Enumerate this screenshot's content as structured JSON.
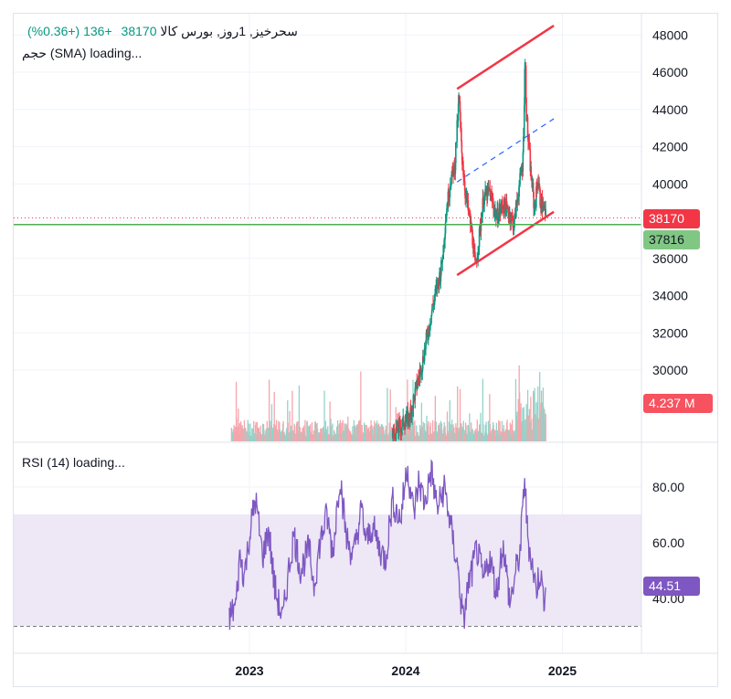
{
  "header": {
    "symbol": "سحرخیز, 1روز, بورس کالا",
    "last": "38170",
    "change": "+136 (+0.36%)",
    "volume_label": "حجم (SMA) loading..."
  },
  "rsi_header": {
    "label": "RSI (14) loading..."
  },
  "badges": {
    "price": "38170",
    "level": "37816",
    "volume": "4.237 M",
    "rsi": "44.51"
  },
  "colors": {
    "up": "#089981",
    "down": "#f23645",
    "channel": "#f23645",
    "midline": "#2962ff",
    "level": "#4caf50",
    "rsi": "#7e57c2",
    "rsi_band": "#ede7f6"
  },
  "chart_data": [
    {
      "type": "candlestick",
      "x_axis": {
        "tick_labels": [
          "2023",
          "2024",
          "2025"
        ]
      },
      "y_axis": {
        "tick_labels": [
          "30000",
          "32000",
          "34000",
          "36000",
          "38000",
          "40000",
          "42000",
          "44000",
          "46000",
          "48000"
        ],
        "range": [
          26000,
          49000
        ],
        "position": "right"
      },
      "price_path": [
        [
          "2023-12-01",
          26500
        ],
        [
          "2024-01-10",
          27500
        ],
        [
          "2024-02-10",
          30500
        ],
        [
          "2024-03-05",
          33500
        ],
        [
          "2024-03-25",
          35500
        ],
        [
          "2024-04-05",
          38500
        ],
        [
          "2024-04-15",
          40200
        ],
        [
          "2024-04-25",
          41000
        ],
        [
          "2024-05-05",
          44800
        ],
        [
          "2024-05-10",
          42000
        ],
        [
          "2024-05-20",
          39500
        ],
        [
          "2024-05-27",
          38500
        ],
        [
          "2024-06-05",
          37200
        ],
        [
          "2024-06-12",
          35400
        ],
        [
          "2024-06-20",
          37000
        ],
        [
          "2024-07-01",
          39200
        ],
        [
          "2024-07-15",
          39600
        ],
        [
          "2024-08-01",
          38200
        ],
        [
          "2024-08-15",
          38900
        ],
        [
          "2024-09-01",
          38400
        ],
        [
          "2024-09-10",
          37800
        ],
        [
          "2024-09-20",
          39500
        ],
        [
          "2024-10-01",
          41200
        ],
        [
          "2024-10-06",
          46800
        ],
        [
          "2024-10-10",
          43500
        ],
        [
          "2024-10-18",
          41000
        ],
        [
          "2024-10-28",
          38600
        ],
        [
          "2024-11-05",
          40300
        ],
        [
          "2024-11-12",
          38900
        ],
        [
          "2024-11-20",
          38600
        ],
        [
          "2024-11-24",
          38170
        ]
      ],
      "last_price": 38170,
      "horizontal_level": 37816,
      "channel": {
        "upper": [
          [
            "2024-04-30",
            45100
          ],
          [
            "2024-12-12",
            48500
          ]
        ],
        "lower": [
          [
            "2024-04-30",
            35100
          ],
          [
            "2024-12-12",
            38500
          ]
        ],
        "middle": [
          [
            "2024-04-30",
            40100
          ],
          [
            "2024-12-12",
            43500
          ]
        ]
      },
      "volume_last": "4.237 M"
    },
    {
      "type": "line",
      "name": "RSI (14)",
      "y_axis": {
        "tick_labels": [
          "40.00",
          "60.00",
          "80.00"
        ],
        "range": [
          21,
          93
        ],
        "position": "right"
      },
      "bands": [
        30,
        50,
        70
      ],
      "series": [
        [
          "2022-11-15",
          33
        ],
        [
          "2022-12-01",
          38
        ],
        [
          "2022-12-10",
          56
        ],
        [
          "2022-12-20",
          48
        ],
        [
          "2023-01-01",
          62
        ],
        [
          "2023-01-15",
          76
        ],
        [
          "2023-02-01",
          55
        ],
        [
          "2023-02-15",
          65
        ],
        [
          "2023-03-01",
          44
        ],
        [
          "2023-03-20",
          32
        ],
        [
          "2023-04-01",
          48
        ],
        [
          "2023-04-15",
          63
        ],
        [
          "2023-05-01",
          50
        ],
        [
          "2023-05-20",
          58
        ],
        [
          "2023-06-01",
          45
        ],
        [
          "2023-06-15",
          60
        ],
        [
          "2023-07-01",
          70
        ],
        [
          "2023-07-15",
          56
        ],
        [
          "2023-08-01",
          85
        ],
        [
          "2023-08-15",
          62
        ],
        [
          "2023-09-01",
          55
        ],
        [
          "2023-09-20",
          72
        ],
        [
          "2023-10-01",
          60
        ],
        [
          "2023-10-15",
          66
        ],
        [
          "2023-11-01",
          58
        ],
        [
          "2023-11-15",
          54
        ],
        [
          "2023-12-01",
          75
        ],
        [
          "2023-12-20",
          68
        ],
        [
          "2024-01-05",
          88
        ],
        [
          "2024-01-20",
          70
        ],
        [
          "2024-02-01",
          82
        ],
        [
          "2024-02-15",
          74
        ],
        [
          "2024-03-01",
          86
        ],
        [
          "2024-03-15",
          72
        ],
        [
          "2024-04-01",
          80
        ],
        [
          "2024-04-15",
          66
        ],
        [
          "2024-05-01",
          52
        ],
        [
          "2024-05-15",
          31
        ],
        [
          "2024-05-25",
          44
        ],
        [
          "2024-06-05",
          50
        ],
        [
          "2024-06-15",
          58
        ],
        [
          "2024-07-01",
          46
        ],
        [
          "2024-07-15",
          55
        ],
        [
          "2024-08-01",
          42
        ],
        [
          "2024-08-15",
          60
        ],
        [
          "2024-09-01",
          38
        ],
        [
          "2024-09-15",
          50
        ],
        [
          "2024-09-25",
          57
        ],
        [
          "2024-10-05",
          84
        ],
        [
          "2024-10-12",
          62
        ],
        [
          "2024-10-20",
          55
        ],
        [
          "2024-11-01",
          43
        ],
        [
          "2024-11-10",
          50
        ],
        [
          "2024-11-18",
          40
        ],
        [
          "2024-11-24",
          44.51
        ]
      ],
      "last_value": "44.51"
    }
  ]
}
